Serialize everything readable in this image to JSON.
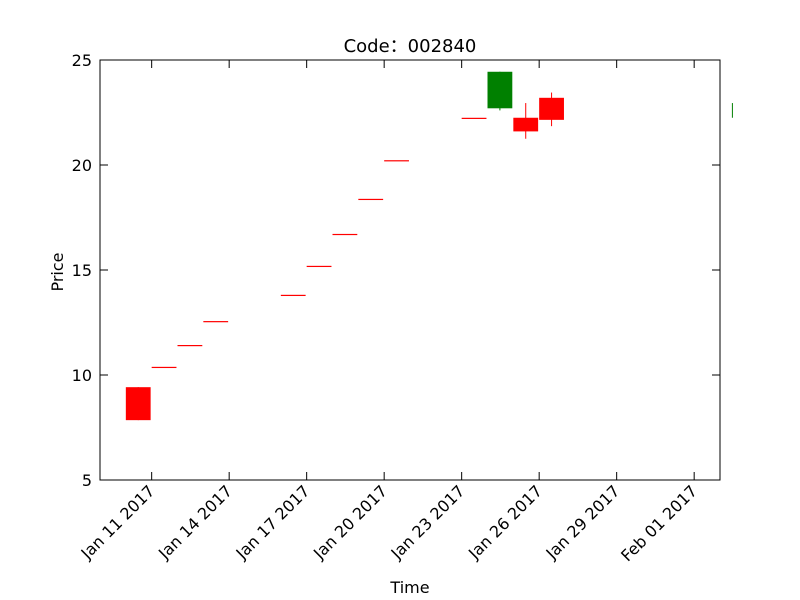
{
  "chart_data": {
    "type": "candlestick",
    "title": "Code：002840",
    "xlabel": "Time",
    "ylabel": "Price",
    "ylim": [
      5,
      25
    ],
    "xlim": [
      "2017-01-09",
      "2017-02-02"
    ],
    "yticks": [
      5,
      10,
      15,
      20,
      25
    ],
    "xticks": [
      {
        "date": "2017-01-11",
        "label": "Jan 11 2017"
      },
      {
        "date": "2017-01-14",
        "label": "Jan 14 2017"
      },
      {
        "date": "2017-01-17",
        "label": "Jan 17 2017"
      },
      {
        "date": "2017-01-20",
        "label": "Jan 20 2017"
      },
      {
        "date": "2017-01-23",
        "label": "Jan 23 2017"
      },
      {
        "date": "2017-01-26",
        "label": "Jan 26 2017"
      },
      {
        "date": "2017-01-29",
        "label": "Jan 29 2017"
      },
      {
        "date": "2017-02-01",
        "label": "Feb 01 2017"
      }
    ],
    "candles": [
      {
        "date": "2017-01-10",
        "open": 7.85,
        "high": 9.42,
        "low": 7.85,
        "close": 9.42
      },
      {
        "date": "2017-01-11",
        "open": 10.36,
        "high": 10.36,
        "low": 10.36,
        "close": 10.36
      },
      {
        "date": "2017-01-12",
        "open": 11.4,
        "high": 11.4,
        "low": 11.4,
        "close": 11.4
      },
      {
        "date": "2017-01-13",
        "open": 12.54,
        "high": 12.54,
        "low": 12.54,
        "close": 12.54
      },
      {
        "date": "2017-01-16",
        "open": 13.79,
        "high": 13.79,
        "low": 13.79,
        "close": 13.79
      },
      {
        "date": "2017-01-17",
        "open": 15.17,
        "high": 15.17,
        "low": 15.17,
        "close": 15.17
      },
      {
        "date": "2017-01-18",
        "open": 16.69,
        "high": 16.69,
        "low": 16.69,
        "close": 16.69
      },
      {
        "date": "2017-01-19",
        "open": 18.36,
        "high": 18.36,
        "low": 18.36,
        "close": 18.36
      },
      {
        "date": "2017-01-20",
        "open": 20.2,
        "high": 20.2,
        "low": 20.2,
        "close": 20.2
      },
      {
        "date": "2017-01-23",
        "open": 22.22,
        "high": 22.22,
        "low": 22.22,
        "close": 22.22
      },
      {
        "date": "2017-01-24",
        "open": 24.44,
        "high": 24.44,
        "low": 22.6,
        "close": 22.7
      },
      {
        "date": "2017-01-25",
        "open": 21.6,
        "high": 22.95,
        "low": 21.25,
        "close": 22.25
      },
      {
        "date": "2017-01-26",
        "open": 22.15,
        "high": 23.45,
        "low": 21.85,
        "close": 23.2
      },
      {
        "date": "2017-02-02",
        "open": 22.85,
        "high": 22.95,
        "low": 22.25,
        "close": 22.5
      }
    ],
    "colors": {
      "up": "#ff0000",
      "down": "#008000",
      "axis": "#000000"
    },
    "grid": false
  }
}
